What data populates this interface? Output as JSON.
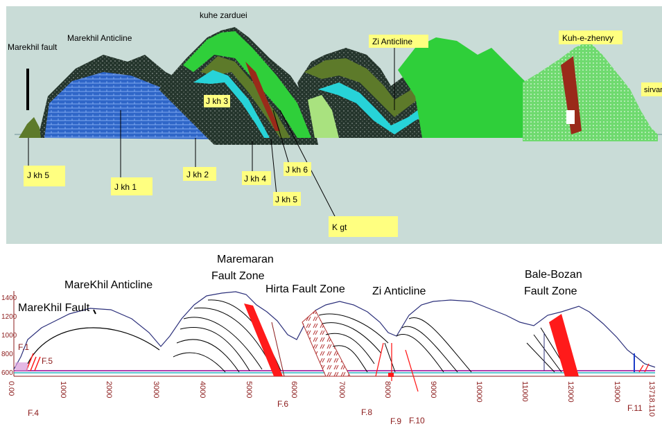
{
  "top_section": {
    "features": {
      "marekhil_fault": "Marekhil fault",
      "marekhil_anticline": "Marekhil Anticline",
      "kuhe_zarduei": "kuhe zarduei",
      "zi_anticline": "Zi Anticline",
      "kuh_e_zhenvy": "Kuh-e-zhenvy",
      "sirvan_fault": "sirvan fau"
    },
    "units": {
      "jkh1": "J kh 1",
      "jkh2": "J kh 2",
      "jkh3": "J kh 3",
      "jkh4": "J kh 4",
      "jkh5_left": "J kh 5",
      "jkh5_mid": "J kh 5",
      "jkh6": "J kh 6",
      "kgt": "K gt"
    },
    "colors": {
      "background": "#c9dcd7",
      "label_box": "#ffff80",
      "blue_unit": "#2f66c8",
      "dark_unit": "#24352c",
      "green_unit": "#2fcf3a",
      "olive_unit": "#5d7a2a",
      "light_green_unit": "#6fda6f",
      "cyan_layer": "#27d3d8",
      "fault_red": "#9a2a1a"
    }
  },
  "bottom_section": {
    "features": {
      "marekhil_anticline": "MareKhil Anticline",
      "marekhil_fault": "MareKhil Fault",
      "maremaran_line1": "Maremaran",
      "maremaran_line2": "Fault Zone",
      "hirta_fault_zone": "Hirta Fault Zone",
      "zi_anticline": "Zi Anticline",
      "bale_bozan_line1": "Bale-Bozan",
      "bale_bozan_line2": "Fault Zone"
    },
    "faults": [
      "F.1",
      "F.4",
      "F.5",
      "F.6",
      "F.8",
      "F.9",
      "F.10",
      "F.11"
    ],
    "y_ticks": [
      "1400",
      "1200",
      "1000",
      "800",
      "600"
    ],
    "x_ticks": [
      "0.00",
      "1000",
      "2000",
      "3000",
      "4000",
      "5000",
      "6000",
      "7000",
      "8000",
      "9000",
      "10000",
      "11000",
      "12000",
      "13000",
      "13718.110"
    ],
    "colors": {
      "profile_line": "#2b2f7a",
      "axis_tick": "#8b1a1a",
      "baseline_magenta": "#b03fb0",
      "baseline_cyan": "#2ab3c0",
      "fault_zone_red": "#ff1a1a",
      "hirta_stroke": "#b23030"
    }
  }
}
